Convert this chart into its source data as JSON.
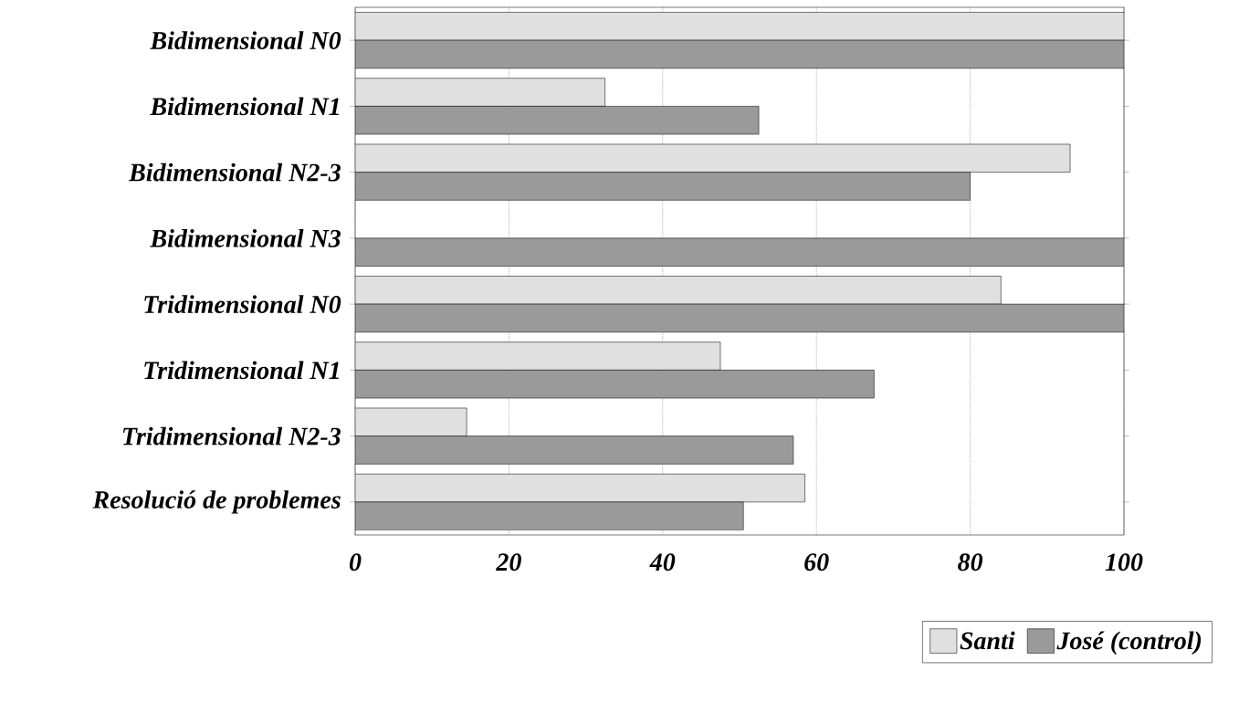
{
  "chart_data": {
    "type": "bar",
    "orientation": "horizontal",
    "categories": [
      "Bidimensional N0",
      "Bidimensional N1",
      "Bidimensional N2-3",
      "Bidimensional N3",
      "Tridimensional N0",
      "Tridimensional N1",
      "Tridimensional N2-3",
      "Resolució de problemes"
    ],
    "series": [
      {
        "name": "Santi",
        "color": "#e0e0e0",
        "values": [
          100,
          32.5,
          93,
          0,
          84,
          47.5,
          14.5,
          58.5
        ]
      },
      {
        "name": "José (control)",
        "color": "#9a9a9a",
        "values": [
          100,
          52.5,
          80,
          100,
          100,
          67.5,
          57,
          50.5
        ]
      }
    ],
    "xlim": [
      0,
      100
    ],
    "xticks": [
      0,
      20,
      40,
      60,
      80,
      100
    ],
    "grid": "x",
    "legend": "bottom right"
  }
}
